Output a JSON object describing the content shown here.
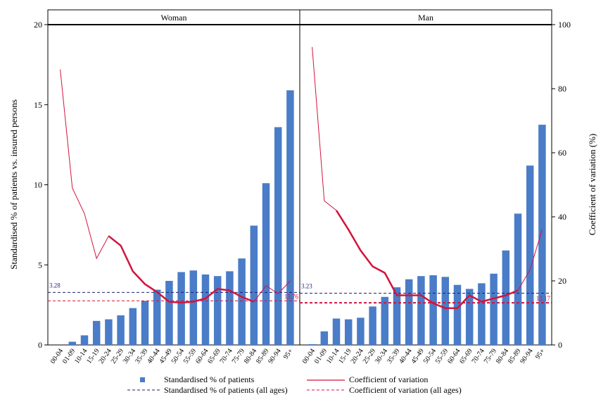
{
  "chart_data": {
    "type": "bar",
    "ylabel_left": "Standardised % of patients vs. insured persons",
    "ylabel_right": "Coefficient of variation (%)",
    "ylim_left": [
      0,
      20
    ],
    "ylim_right": [
      0,
      100
    ],
    "yticks_left": [
      "0",
      "5",
      "10",
      "15",
      "20"
    ],
    "yticks_right": [
      "0",
      "20",
      "40",
      "60",
      "80",
      "100"
    ],
    "categories": [
      "00-04",
      "01-09",
      "10-14",
      "15-19",
      "20-24",
      "25-29",
      "30-34",
      "35-39",
      "40-44",
      "45-49",
      "50-54",
      "55-59",
      "60-64",
      "65-69",
      "70-74",
      "75-79",
      "80-84",
      "85-89",
      "90-94",
      "95+"
    ],
    "panels": [
      {
        "name": "Woman",
        "bars": [
          0,
          0.2,
          0.6,
          1.5,
          1.6,
          1.85,
          2.3,
          2.75,
          3.45,
          4.0,
          4.55,
          4.65,
          4.4,
          4.3,
          4.6,
          5.4,
          7.45,
          10.1,
          13.6,
          15.9
        ],
        "cv": [
          86,
          49,
          41,
          27,
          34,
          31,
          23,
          19,
          16.5,
          13.5,
          13.2,
          13.5,
          14.5,
          17.5,
          17,
          15,
          13.5,
          18.5,
          16,
          20
        ],
        "cv_bold_range": [
          4,
          16
        ],
        "ref_pct": 3.28,
        "ref_pct_label": "3.28",
        "ref_cv": 13.76,
        "ref_cv_label": "13.76"
      },
      {
        "name": "Man",
        "bars": [
          0.05,
          0.85,
          1.65,
          1.6,
          1.7,
          2.4,
          3.0,
          3.6,
          4.1,
          4.3,
          4.35,
          4.25,
          3.75,
          3.5,
          3.85,
          4.45,
          5.9,
          8.2,
          11.2,
          13.75
        ],
        "cv": [
          93,
          45,
          42,
          36,
          29.5,
          24.5,
          22.5,
          15.5,
          15.5,
          15.5,
          13,
          11.5,
          11.5,
          15.5,
          13.5,
          14.5,
          15.5,
          17,
          23.5,
          36
        ],
        "cv_bold_range": [
          2,
          17
        ],
        "ref_pct": 3.23,
        "ref_pct_label": "3.23",
        "ref_cv": 13.17,
        "ref_cv_label": "13.17"
      }
    ],
    "legend": {
      "bars": "Standardised % of patients",
      "cv": "Coefficient of variation",
      "ref_pct": "Standardised % of patients (all ages)",
      "ref_cv": "Coefficient of variation (all ages)"
    },
    "colors": {
      "bar": "#4a7cc8",
      "cv": "#d2143c",
      "ref_pct": "#1e1e78",
      "ref_cv": "#d2143c"
    }
  }
}
